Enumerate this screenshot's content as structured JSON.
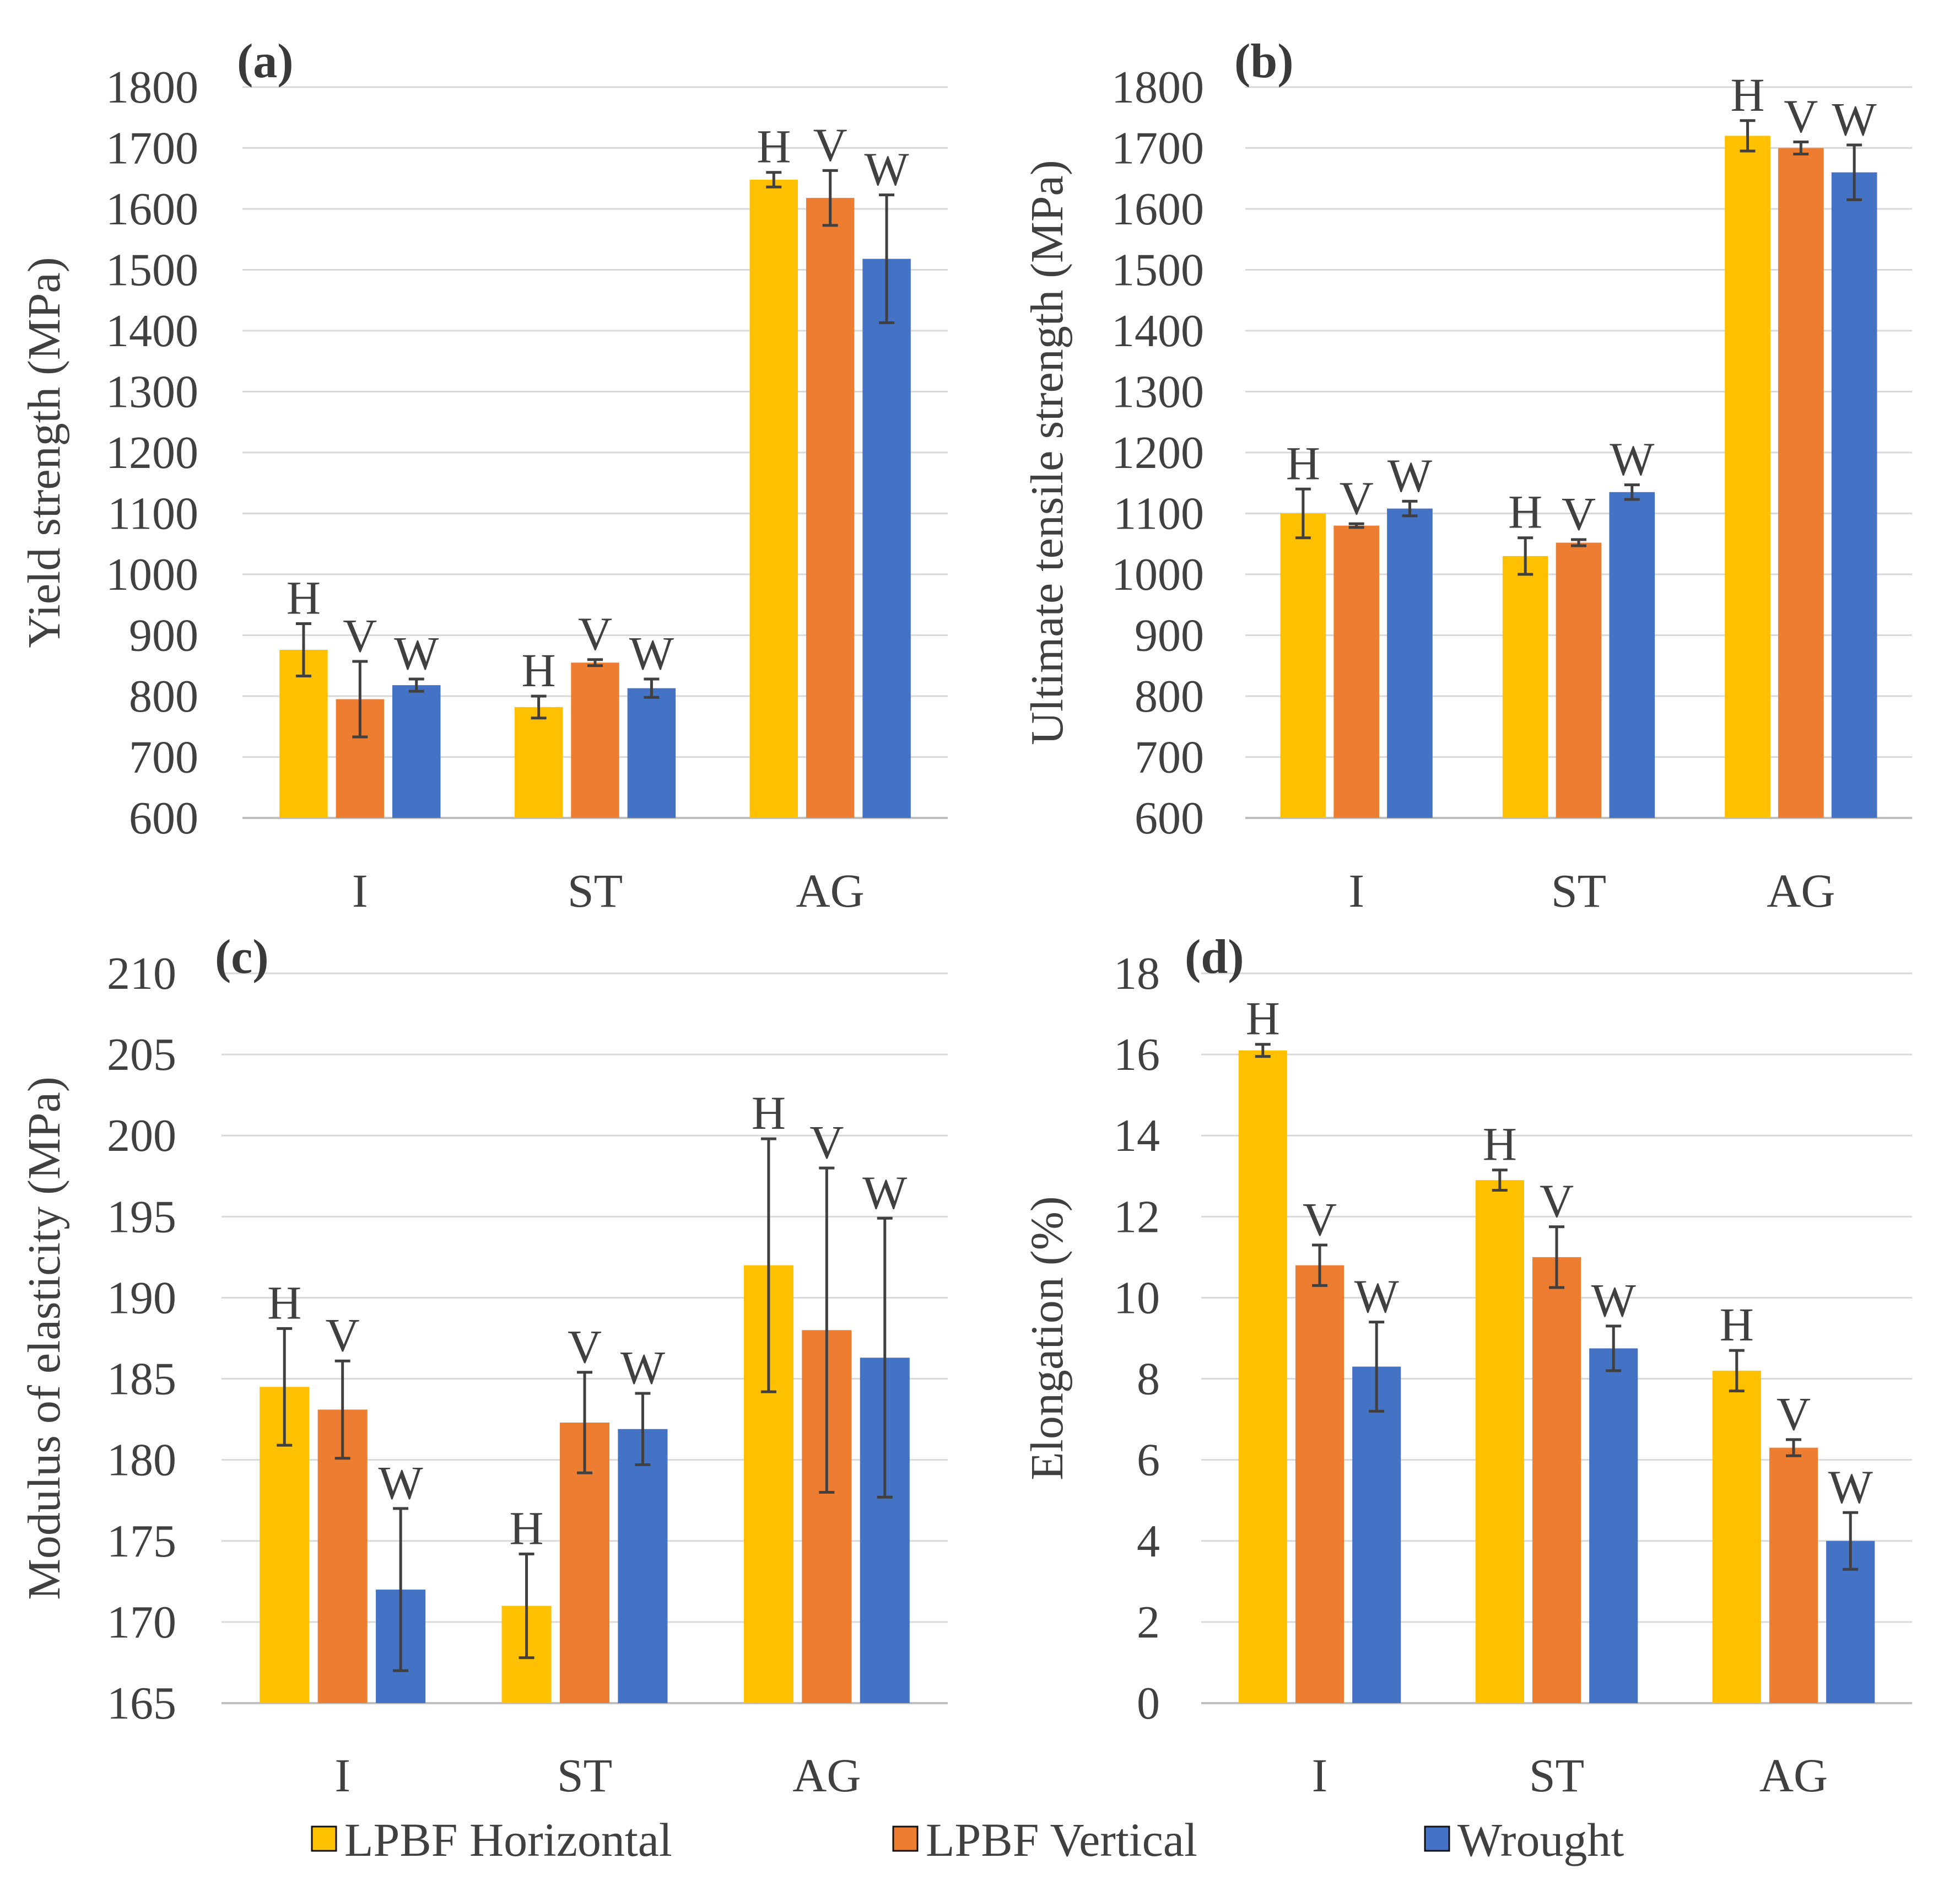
{
  "legend": [
    {
      "key": "H",
      "label": "LPBF Horizontal",
      "color": "#FFC000"
    },
    {
      "key": "V",
      "label": "LPBF Vertical",
      "color": "#ED7D31"
    },
    {
      "key": "W",
      "label": "Wrought",
      "color": "#4472C4"
    }
  ],
  "chart_data": [
    {
      "id": "a",
      "panel_label": "(a)",
      "type": "bar",
      "ylabel": "Yield strength (MPa)",
      "ylim": [
        600,
        1800
      ],
      "yticks": [
        600,
        700,
        800,
        900,
        1000,
        1100,
        1200,
        1300,
        1400,
        1500,
        1600,
        1700,
        1800
      ],
      "categories": [
        "I",
        "ST",
        "AG"
      ],
      "bar_tags": [
        "H",
        "V",
        "W"
      ],
      "series": [
        {
          "name": "LPBF Horizontal",
          "values": [
            876,
            782,
            1648
          ],
          "errors": [
            43,
            18,
            12
          ]
        },
        {
          "name": "LPBF Vertical",
          "values": [
            795,
            855,
            1618
          ],
          "errors": [
            62,
            5,
            45
          ]
        },
        {
          "name": "Wrought",
          "values": [
            818,
            813,
            1518
          ],
          "errors": [
            10,
            15,
            105
          ]
        }
      ]
    },
    {
      "id": "b",
      "panel_label": "(b)",
      "type": "bar",
      "ylabel": "Ultimate tensile strength (MPa)",
      "ylim": [
        600,
        1800
      ],
      "yticks": [
        600,
        700,
        800,
        900,
        1000,
        1100,
        1200,
        1300,
        1400,
        1500,
        1600,
        1700,
        1800
      ],
      "categories": [
        "I",
        "ST",
        "AG"
      ],
      "bar_tags": [
        "H",
        "V",
        "W"
      ],
      "series": [
        {
          "name": "LPBF Horizontal",
          "values": [
            1100,
            1030,
            1720
          ],
          "errors": [
            40,
            30,
            25
          ]
        },
        {
          "name": "LPBF Vertical",
          "values": [
            1080,
            1052,
            1700
          ],
          "errors": [
            3,
            5,
            10
          ]
        },
        {
          "name": "Wrought",
          "values": [
            1108,
            1135,
            1660
          ],
          "errors": [
            12,
            12,
            45
          ]
        }
      ]
    },
    {
      "id": "c",
      "panel_label": "(c)",
      "type": "bar",
      "ylabel": "Modulus of elasticity (MPa)",
      "ylim": [
        165,
        210
      ],
      "yticks": [
        165,
        170,
        175,
        180,
        185,
        190,
        195,
        200,
        205,
        210
      ],
      "categories": [
        "I",
        "ST",
        "AG"
      ],
      "bar_tags": [
        "H",
        "V",
        "W"
      ],
      "series": [
        {
          "name": "LPBF Horizontal",
          "values": [
            184.5,
            171,
            192
          ],
          "errors": [
            3.6,
            3.2,
            7.8
          ]
        },
        {
          "name": "LPBF Vertical",
          "values": [
            183.1,
            182.3,
            188
          ],
          "errors": [
            3.0,
            3.1,
            10
          ]
        },
        {
          "name": "Wrought",
          "values": [
            172,
            181.9,
            186.3
          ],
          "errors": [
            5,
            2.2,
            8.6
          ]
        }
      ]
    },
    {
      "id": "d",
      "panel_label": "(d)",
      "type": "bar",
      "ylabel": "Elongation (%)",
      "ylim": [
        0,
        18
      ],
      "yticks": [
        0,
        2,
        4,
        6,
        8,
        10,
        12,
        14,
        16,
        18
      ],
      "categories": [
        "I",
        "ST",
        "AG"
      ],
      "bar_tags": [
        "H",
        "V",
        "W"
      ],
      "series": [
        {
          "name": "LPBF Horizontal",
          "values": [
            16.1,
            12.9,
            8.2
          ],
          "errors": [
            0.15,
            0.25,
            0.5
          ]
        },
        {
          "name": "LPBF Vertical",
          "values": [
            10.8,
            11.0,
            6.3
          ],
          "errors": [
            0.5,
            0.75,
            0.2
          ]
        },
        {
          "name": "Wrought",
          "values": [
            8.3,
            8.75,
            4.0
          ],
          "errors": [
            1.1,
            0.55,
            0.7
          ]
        }
      ]
    }
  ]
}
